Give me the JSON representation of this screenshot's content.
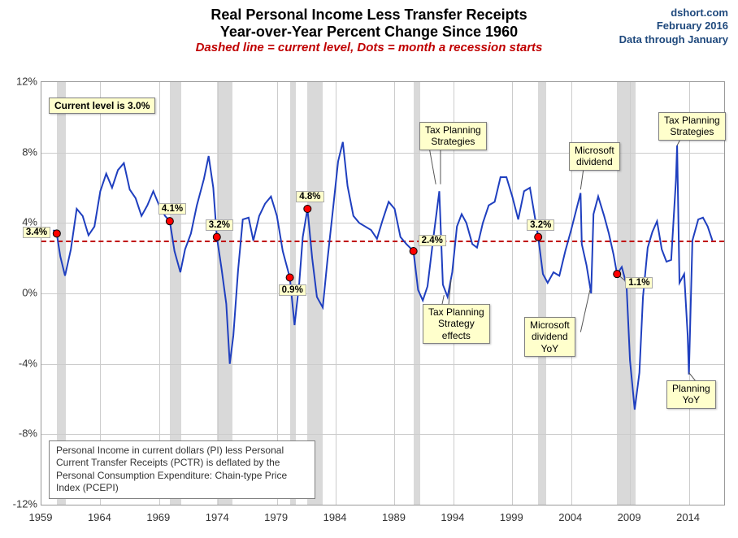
{
  "title": {
    "line1": "Real Personal Income Less Transfer Receipts",
    "line2": "Year-over-Year Percent Change Since 1960",
    "subtitle": "Dashed line = current level, Dots = month a recession starts",
    "title_fontsize": 18,
    "subtitle_fontsize": 15,
    "title_color": "#000000",
    "subtitle_color": "#c00000"
  },
  "source": {
    "line1": "dshort.com",
    "line2": "February 2016",
    "line3": "Data through January",
    "fontsize": 13,
    "color": "#1f497d"
  },
  "chart": {
    "type": "line",
    "line_color": "#1f3fbf",
    "line_width": 2,
    "background_color": "#ffffff",
    "grid_color": "#cccccc",
    "xlim": [
      1959,
      2017
    ],
    "ylim": [
      -12,
      12
    ],
    "ytick_step": 4,
    "yticks": [
      "12%",
      "8%",
      "4%",
      "0%",
      "-4%",
      "-8%",
      "-12%"
    ],
    "xticks": [
      1959,
      1964,
      1969,
      1974,
      1979,
      1984,
      1989,
      1994,
      1999,
      2004,
      2009,
      2014
    ],
    "dashed_current_level": 3.0,
    "dashed_color": "#c00000",
    "recessions": [
      [
        1960.3,
        1961.1
      ],
      [
        1969.9,
        1970.9
      ],
      [
        1973.9,
        1975.2
      ],
      [
        1980.1,
        1980.6
      ],
      [
        1981.6,
        1982.9
      ],
      [
        1990.6,
        1991.2
      ],
      [
        2001.2,
        2001.9
      ],
      [
        2007.9,
        2009.5
      ]
    ],
    "recession_color": "rgba(180,180,180,0.5)",
    "dots": [
      {
        "year": 1960.3,
        "value": 3.4,
        "label": "3.4%",
        "label_pos": "left"
      },
      {
        "year": 1969.9,
        "value": 4.1,
        "label": "4.1%",
        "label_pos": "above"
      },
      {
        "year": 1973.9,
        "value": 3.2,
        "label": "3.2%",
        "label_pos": "above"
      },
      {
        "year": 1980.1,
        "value": 0.9,
        "label": "0.9%",
        "label_pos": "below"
      },
      {
        "year": 1981.6,
        "value": 4.8,
        "label": "4.8%",
        "label_pos": "above"
      },
      {
        "year": 1990.6,
        "value": 2.4,
        "label": "2.4%",
        "label_pos": "above-right"
      },
      {
        "year": 2001.2,
        "value": 3.2,
        "label": "3.2%",
        "label_pos": "above"
      },
      {
        "year": 2007.9,
        "value": 1.1,
        "label": "1.1%",
        "label_pos": "below-right"
      }
    ],
    "dot_color": "#ff0000",
    "dot_border": "#000000",
    "dot_radius": 4.5,
    "series": [
      [
        1960.0,
        3.6
      ],
      [
        1960.3,
        3.4
      ],
      [
        1960.6,
        2.1
      ],
      [
        1961.0,
        1.0
      ],
      [
        1961.5,
        2.5
      ],
      [
        1962.0,
        4.8
      ],
      [
        1962.5,
        4.4
      ],
      [
        1963.0,
        3.3
      ],
      [
        1963.5,
        3.8
      ],
      [
        1964.0,
        5.8
      ],
      [
        1964.5,
        6.8
      ],
      [
        1965.0,
        6.0
      ],
      [
        1965.5,
        7.0
      ],
      [
        1966.0,
        7.4
      ],
      [
        1966.5,
        5.9
      ],
      [
        1967.0,
        5.4
      ],
      [
        1967.5,
        4.4
      ],
      [
        1968.0,
        5.0
      ],
      [
        1968.5,
        5.8
      ],
      [
        1969.0,
        5.0
      ],
      [
        1969.5,
        4.4
      ],
      [
        1969.9,
        4.1
      ],
      [
        1970.3,
        2.4
      ],
      [
        1970.8,
        1.2
      ],
      [
        1971.2,
        2.5
      ],
      [
        1971.7,
        3.4
      ],
      [
        1972.2,
        5.0
      ],
      [
        1972.8,
        6.5
      ],
      [
        1973.2,
        7.8
      ],
      [
        1973.6,
        6.0
      ],
      [
        1973.9,
        3.2
      ],
      [
        1974.3,
        1.4
      ],
      [
        1974.7,
        -0.6
      ],
      [
        1975.0,
        -4.0
      ],
      [
        1975.3,
        -2.4
      ],
      [
        1975.7,
        1.3
      ],
      [
        1976.1,
        4.2
      ],
      [
        1976.6,
        4.3
      ],
      [
        1977.0,
        3.0
      ],
      [
        1977.5,
        4.4
      ],
      [
        1978.0,
        5.1
      ],
      [
        1978.5,
        5.5
      ],
      [
        1979.0,
        4.4
      ],
      [
        1979.5,
        2.4
      ],
      [
        1980.1,
        0.9
      ],
      [
        1980.5,
        -1.8
      ],
      [
        1980.9,
        0.6
      ],
      [
        1981.2,
        3.2
      ],
      [
        1981.6,
        4.8
      ],
      [
        1982.0,
        2.0
      ],
      [
        1982.4,
        -0.2
      ],
      [
        1982.9,
        -0.8
      ],
      [
        1983.3,
        1.9
      ],
      [
        1983.8,
        5.0
      ],
      [
        1984.2,
        7.5
      ],
      [
        1984.6,
        8.6
      ],
      [
        1985.0,
        6.1
      ],
      [
        1985.5,
        4.4
      ],
      [
        1986.0,
        4.0
      ],
      [
        1986.5,
        3.8
      ],
      [
        1987.0,
        3.6
      ],
      [
        1987.5,
        3.1
      ],
      [
        1988.0,
        4.2
      ],
      [
        1988.5,
        5.2
      ],
      [
        1989.0,
        4.8
      ],
      [
        1989.5,
        3.2
      ],
      [
        1990.0,
        2.8
      ],
      [
        1990.6,
        2.4
      ],
      [
        1991.0,
        0.2
      ],
      [
        1991.4,
        -0.4
      ],
      [
        1991.8,
        0.4
      ],
      [
        1992.3,
        3.2
      ],
      [
        1992.8,
        5.8
      ],
      [
        1993.1,
        0.5
      ],
      [
        1993.5,
        -0.2
      ],
      [
        1993.9,
        1.2
      ],
      [
        1994.3,
        3.8
      ],
      [
        1994.7,
        4.5
      ],
      [
        1995.1,
        4.0
      ],
      [
        1995.6,
        2.8
      ],
      [
        1996.0,
        2.6
      ],
      [
        1996.5,
        4.0
      ],
      [
        1997.0,
        5.0
      ],
      [
        1997.5,
        5.2
      ],
      [
        1998.0,
        6.6
      ],
      [
        1998.5,
        6.6
      ],
      [
        1999.0,
        5.5
      ],
      [
        1999.5,
        4.2
      ],
      [
        2000.0,
        5.8
      ],
      [
        2000.5,
        6.0
      ],
      [
        2001.0,
        4.0
      ],
      [
        2001.2,
        3.2
      ],
      [
        2001.6,
        1.1
      ],
      [
        2002.0,
        0.6
      ],
      [
        2002.5,
        1.2
      ],
      [
        2003.0,
        1.0
      ],
      [
        2003.5,
        2.4
      ],
      [
        2004.0,
        3.6
      ],
      [
        2004.8,
        5.7
      ],
      [
        2004.9,
        2.8
      ],
      [
        2005.3,
        1.6
      ],
      [
        2005.7,
        0.0
      ],
      [
        2005.9,
        4.5
      ],
      [
        2006.3,
        5.5
      ],
      [
        2006.8,
        4.4
      ],
      [
        2007.2,
        3.4
      ],
      [
        2007.6,
        2.2
      ],
      [
        2007.9,
        1.1
      ],
      [
        2008.3,
        1.5
      ],
      [
        2008.7,
        0.5
      ],
      [
        2009.0,
        -3.8
      ],
      [
        2009.4,
        -6.6
      ],
      [
        2009.8,
        -4.5
      ],
      [
        2010.1,
        -0.2
      ],
      [
        2010.5,
        2.6
      ],
      [
        2010.9,
        3.5
      ],
      [
        2011.3,
        4.1
      ],
      [
        2011.7,
        2.5
      ],
      [
        2012.1,
        1.8
      ],
      [
        2012.5,
        1.9
      ],
      [
        2012.9,
        6.4
      ],
      [
        2013.0,
        8.4
      ],
      [
        2013.2,
        0.6
      ],
      [
        2013.6,
        1.1
      ],
      [
        2013.9,
        -2.4
      ],
      [
        2014.0,
        -4.6
      ],
      [
        2014.3,
        3.0
      ],
      [
        2014.8,
        4.2
      ],
      [
        2015.2,
        4.3
      ],
      [
        2015.6,
        3.8
      ],
      [
        2016.0,
        3.0
      ]
    ]
  },
  "callouts": {
    "current_level": "Current level is 3.0%",
    "tax_planning_strategies_1": "Tax Planning\nStrategies",
    "tax_planning_strategy_effects": "Tax Planning\nStrategy\neffects",
    "microsoft_dividend": "Microsoft\ndividend",
    "microsoft_dividend_yoy": "Microsoft\ndividend\nYoY",
    "tax_planning_strategies_2": "Tax Planning\nStrategies",
    "planning_yoy": "Planning\nYoY"
  },
  "callout_style": {
    "bg": "#ffffcc",
    "border": "#808080",
    "fontsize": 12
  },
  "footnote": {
    "text": "Personal Income in current dollars (PI) less Personal Current Transfer Receipts (PCTR) is deflated by the Personal Consumption Expenditure: Chain-type Price Index (PCEPI)",
    "fontsize": 12
  }
}
